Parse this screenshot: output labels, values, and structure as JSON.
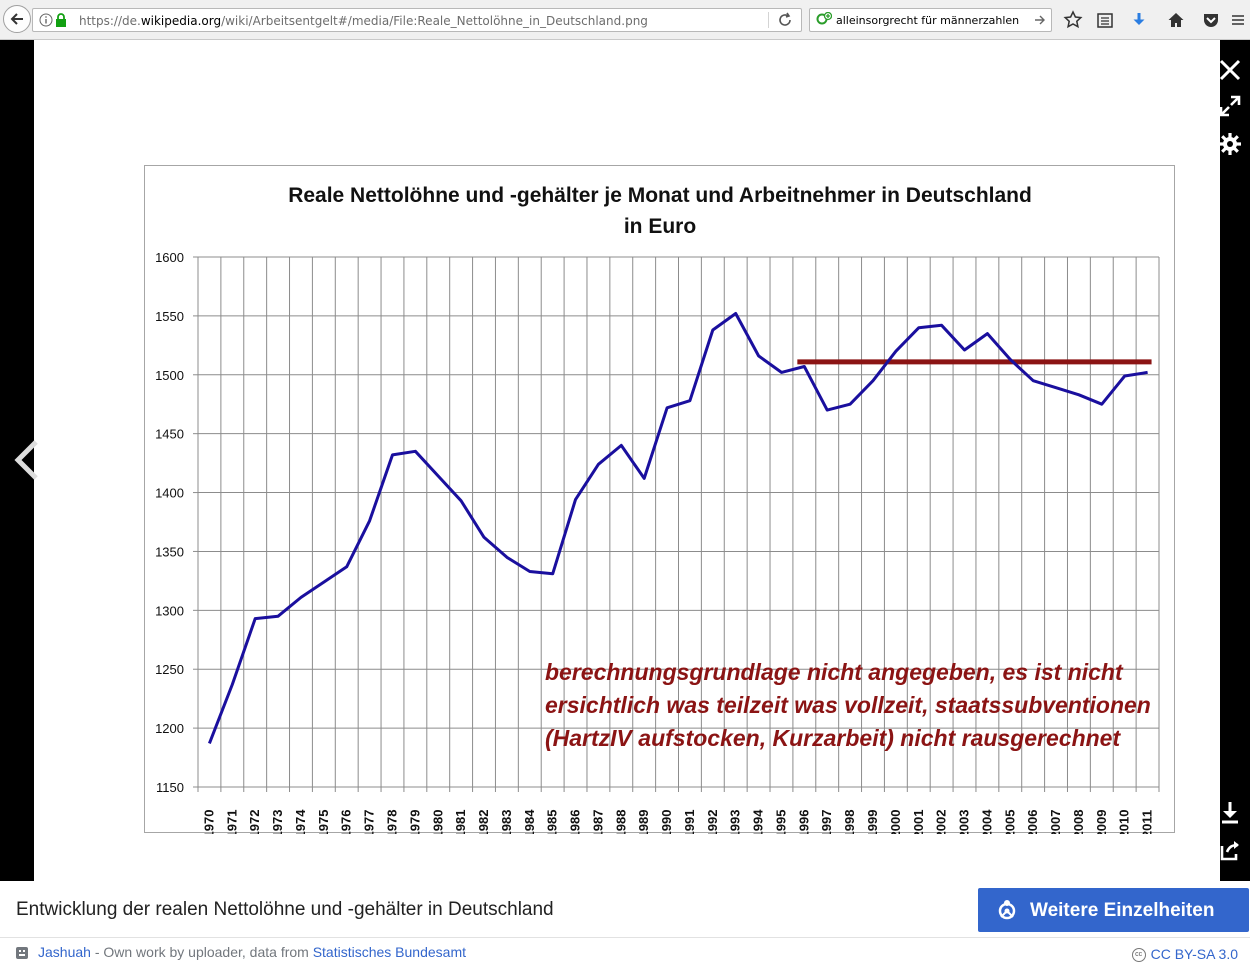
{
  "browser": {
    "url_prefix": "https://de.",
    "url_domain": "wikipedia.org",
    "url_path": "/wiki/Arbeitsentgelt#/media/File:Reale_Nettolöhne_in_Deutschland.png",
    "search_value": "alleinsorgrecht für männerzahlen"
  },
  "caption": "Entwicklung der realen Nettolöhne und -gehälter in Deutschland",
  "details_button": "Weitere Einzelheiten",
  "credit": {
    "author": "Jashuah",
    "middle": " - Own work by uploader, data from ",
    "source": "Statistisches Bundesamt"
  },
  "license": "CC BY-SA 3.0",
  "chart_data": {
    "type": "line",
    "title_line1": "Reale Nettolöhne und -gehälter je Monat und Arbeitnehmer in Deutschland",
    "title_line2": "in Euro",
    "ylim": [
      1150,
      1600
    ],
    "yticks": [
      1600,
      1550,
      1500,
      1450,
      1400,
      1350,
      1300,
      1250,
      1200,
      1150
    ],
    "grid": true,
    "x": [
      "1970",
      "1971",
      "1972",
      "1973",
      "1974",
      "1975",
      "1976",
      "1977",
      "1978",
      "1979",
      "1980",
      "1981",
      "1982",
      "1983",
      "1984",
      "1985",
      "1986",
      "1987",
      "1988",
      "1989",
      "1990",
      "1991",
      "1992",
      "1993",
      "1994",
      "1995",
      "1996",
      "1997",
      "1998",
      "1999",
      "2000",
      "2001",
      "2002",
      "2003",
      "2004",
      "2005",
      "2006",
      "2007",
      "2008",
      "2009",
      "2010",
      "2011"
    ],
    "series": [
      {
        "color": "#1a0f9e",
        "values": [
          1187,
          1237,
          1293,
          1295,
          1311,
          1324,
          1337,
          1376,
          1432,
          1435,
          1414,
          1393,
          1362,
          1345,
          1333,
          1331,
          1394,
          1424,
          1440,
          1412,
          1472,
          1478,
          1538,
          1552,
          1516,
          1502,
          1507,
          1470,
          1475,
          1495,
          1520,
          1540,
          1542,
          1521,
          1535,
          1513,
          1495,
          1489,
          1483,
          1475,
          1499,
          1502
        ]
      }
    ],
    "reference_line": {
      "value": 1511,
      "from": "1996",
      "to": "2011",
      "color": "#8b1414"
    },
    "annotation": {
      "lines": [
        "berechnungsgrundlage nicht angegeben, es ist nicht",
        "ersichtlich was teilzeit was vollzeit, staatssubventionen",
        "(HartzIV aufstocken, Kurzarbeit) nicht rausgerechnet"
      ],
      "color": "#8b1414"
    }
  }
}
